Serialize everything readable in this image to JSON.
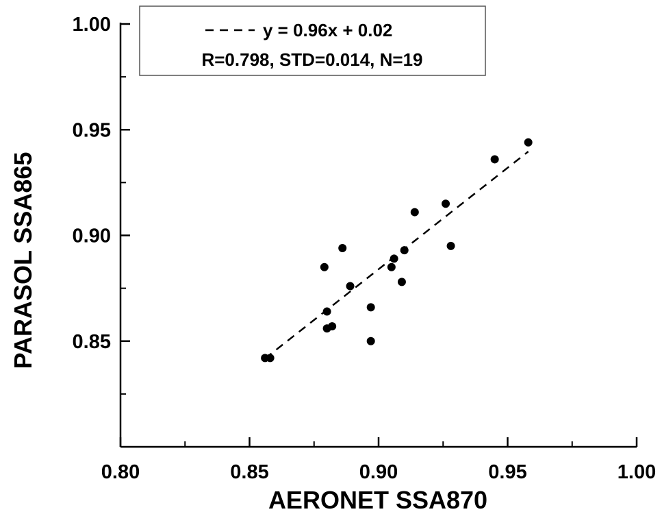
{
  "chart_data": {
    "type": "scatter",
    "title": "",
    "xlabel": "AERONET SSA870",
    "ylabel": "PARASOL SSA865",
    "xlim": [
      0.8,
      1.0
    ],
    "ylim": [
      0.8,
      1.0
    ],
    "x_ticks": [
      0.8,
      0.85,
      0.9,
      0.95,
      1.0
    ],
    "y_ticks": [
      0.85,
      0.9,
      0.95,
      1.0
    ],
    "x_tick_labels": [
      "0.80",
      "0.85",
      "0.90",
      "0.95",
      "1.00"
    ],
    "y_tick_labels": [
      "0.85",
      "0.90",
      "0.95",
      "1.00"
    ],
    "grid": false,
    "legend_position": "top-center",
    "legend_line_label": "y = 0.96x + 0.02",
    "stats_text": "R=0.798, STD=0.014, N=19",
    "marker_color": "#000000",
    "points": [
      {
        "x": 0.856,
        "y": 0.842
      },
      {
        "x": 0.858,
        "y": 0.842
      },
      {
        "x": 0.88,
        "y": 0.856
      },
      {
        "x": 0.882,
        "y": 0.857
      },
      {
        "x": 0.88,
        "y": 0.864
      },
      {
        "x": 0.879,
        "y": 0.885
      },
      {
        "x": 0.886,
        "y": 0.894
      },
      {
        "x": 0.889,
        "y": 0.876
      },
      {
        "x": 0.897,
        "y": 0.85
      },
      {
        "x": 0.897,
        "y": 0.866
      },
      {
        "x": 0.905,
        "y": 0.885
      },
      {
        "x": 0.906,
        "y": 0.889
      },
      {
        "x": 0.909,
        "y": 0.878
      },
      {
        "x": 0.91,
        "y": 0.893
      },
      {
        "x": 0.914,
        "y": 0.911
      },
      {
        "x": 0.926,
        "y": 0.915
      },
      {
        "x": 0.928,
        "y": 0.895
      },
      {
        "x": 0.945,
        "y": 0.936
      },
      {
        "x": 0.958,
        "y": 0.944
      }
    ],
    "fit_line": {
      "slope": 0.96,
      "intercept": 0.02,
      "x_range": [
        0.856,
        0.958
      ],
      "style": "dashed"
    }
  }
}
